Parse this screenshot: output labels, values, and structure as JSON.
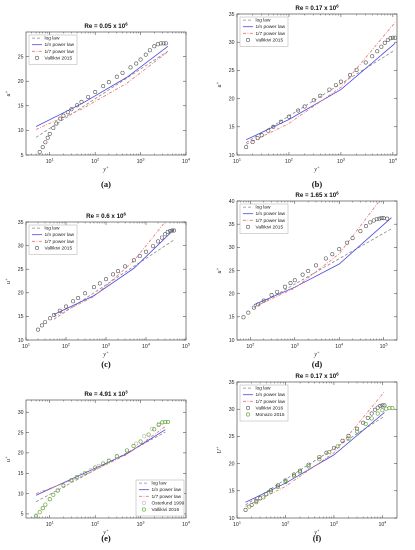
{
  "colors": {
    "log": "#8a8a8a",
    "power_n": "#4a4adf",
    "power_7": "#ee6f6f",
    "vallikivi": "#555555",
    "osterlund": "#b8b8b8",
    "green": "#5aa02c"
  },
  "legend_labels": {
    "log": "log law",
    "power_n": "1/n power law",
    "power_7": "1/7 power law"
  },
  "chart_data": [
    {
      "id": "a",
      "panel_label": "(a)",
      "type": "line",
      "title": "Re = 0.05 x 10",
      "title_exp": "6",
      "xlabel": "y",
      "xlabel_sup": "+",
      "ylabel": "u",
      "ylabel_sup": "+",
      "xscale": "log",
      "xlim": [
        3,
        10000
      ],
      "ylim": [
        5,
        30
      ],
      "xticks": [
        10,
        100,
        1000,
        10000
      ],
      "xtick_labels": [
        "10",
        "10",
        "10",
        "10"
      ],
      "xtick_exps": [
        "1",
        "2",
        "3",
        "4"
      ],
      "yticks": [
        5,
        10,
        15,
        20,
        25
      ],
      "ytick_labels": [
        "5",
        "10",
        "15",
        "20",
        "25"
      ],
      "legend_position": "top-left",
      "series": [
        {
          "name": "log law",
          "style": "dashed",
          "color_key": "log",
          "x": [
            5,
            4000
          ],
          "y": [
            8.6,
            26.1
          ]
        },
        {
          "name": "1/n power law",
          "style": "solid",
          "color_key": "power_n",
          "x": [
            5,
            50,
            500,
            4000
          ],
          "y": [
            10.8,
            15.4,
            20.8,
            27.1
          ]
        },
        {
          "name": "1/7 power law",
          "style": "dashdot",
          "color_key": "power_7",
          "x": [
            5,
            50,
            500,
            4000
          ],
          "y": [
            10.2,
            14.3,
            19.6,
            26.0
          ]
        },
        {
          "name": "Vallikivi 2015",
          "style": "marker",
          "color_key": "vallikivi",
          "x": [
            5,
            6,
            7,
            8,
            9,
            10,
            12,
            14,
            17,
            20,
            25,
            30,
            40,
            50,
            70,
            100,
            150,
            200,
            300,
            400,
            600,
            800,
            1000,
            1300,
            1600,
            2000,
            2400,
            2800,
            3200,
            3600
          ],
          "y": [
            4.6,
            5.6,
            6.6,
            7.6,
            8.5,
            9.3,
            10.5,
            11.4,
            12.4,
            13.0,
            13.7,
            14.3,
            15.1,
            15.8,
            16.8,
            17.8,
            19.0,
            19.8,
            20.9,
            21.7,
            22.8,
            23.6,
            24.4,
            25.4,
            26.3,
            27.1,
            27.5,
            27.7,
            27.7,
            27.7
          ]
        }
      ]
    },
    {
      "id": "b",
      "panel_label": "(b)",
      "type": "line",
      "title": "Re = 0.17 x 10",
      "title_exp": "6",
      "xlabel": "y",
      "xlabel_sup": "+",
      "ylabel": "u",
      "ylabel_sup": "+",
      "xscale": "log",
      "xlim": [
        10,
        12000
      ],
      "ylim": [
        10,
        35
      ],
      "xticks": [
        10,
        100,
        1000,
        10000
      ],
      "xtick_labels": [
        "10",
        "10",
        "10",
        "10"
      ],
      "xtick_exps": [
        "1",
        "2",
        "3",
        "4"
      ],
      "yticks": [
        10,
        15,
        20,
        25,
        30,
        35
      ],
      "ytick_labels": [
        "10",
        "15",
        "20",
        "25",
        "30",
        "35"
      ],
      "legend_position": "top-left",
      "series": [
        {
          "name": "log law",
          "style": "dashed",
          "color_key": "log",
          "x": [
            15,
            11000
          ],
          "y": [
            12.2,
            28.6
          ]
        },
        {
          "name": "1/n power law",
          "style": "solid",
          "color_key": "power_n",
          "x": [
            15,
            100,
            1000,
            11000
          ],
          "y": [
            12.7,
            16.3,
            21.6,
            29.8
          ]
        },
        {
          "name": "1/7 power law",
          "style": "dashdot",
          "color_key": "power_7",
          "x": [
            15,
            100,
            1000,
            11000
          ],
          "y": [
            11.9,
            15.6,
            22.0,
            33.5
          ]
        },
        {
          "name": "Vallikivi 2015",
          "style": "marker",
          "color_key": "vallikivi",
          "x": [
            15,
            20,
            25,
            30,
            40,
            50,
            70,
            100,
            150,
            200,
            300,
            400,
            600,
            800,
            1000,
            1500,
            2000,
            3000,
            4000,
            5000,
            6000,
            7000,
            8000,
            9000,
            10000,
            11000
          ],
          "y": [
            11.4,
            12.3,
            13.0,
            13.5,
            14.3,
            15.0,
            15.9,
            16.8,
            17.9,
            18.6,
            19.7,
            20.5,
            21.6,
            22.4,
            23.0,
            24.2,
            25.1,
            26.4,
            27.5,
            28.4,
            29.2,
            29.9,
            30.4,
            30.7,
            30.8,
            30.8
          ]
        }
      ]
    },
    {
      "id": "c",
      "panel_label": "(c)",
      "type": "line",
      "title": "Re = 0.6 x 10",
      "title_exp": "6",
      "xlabel": "y",
      "xlabel_sup": "+",
      "ylabel": "u",
      "ylabel_sup": "+",
      "xscale": "log",
      "xlim": [
        10,
        100000
      ],
      "ylim": [
        10,
        35
      ],
      "xticks": [
        10,
        100,
        1000,
        10000,
        100000
      ],
      "xtick_labels": [
        "10",
        "10",
        "10",
        "10",
        "10"
      ],
      "xtick_exps": [
        "1",
        "2",
        "3",
        "4",
        "5"
      ],
      "yticks": [
        10,
        15,
        20,
        25,
        30,
        35
      ],
      "ytick_labels": [
        "10",
        "15",
        "20",
        "25",
        "30",
        "35"
      ],
      "legend_position": "top-left",
      "series": [
        {
          "name": "log law",
          "style": "dashed",
          "color_key": "log",
          "x": [
            50,
            50000
          ],
          "y": [
            14.4,
            31.2
          ]
        },
        {
          "name": "1/n power law",
          "style": "solid",
          "color_key": "power_n",
          "x": [
            50,
            500,
            5000,
            50000
          ],
          "y": [
            15.4,
            19.4,
            25.2,
            33.4
          ]
        },
        {
          "name": "1/7 power law",
          "style": "dashdot",
          "color_key": "power_7",
          "x": [
            50,
            500,
            5000,
            30000
          ],
          "y": [
            15.0,
            19.2,
            26.8,
            35.0
          ]
        },
        {
          "name": "Vallikivi 2015",
          "style": "marker",
          "color_key": "vallikivi",
          "x": [
            20,
            25,
            30,
            40,
            50,
            70,
            100,
            150,
            200,
            300,
            500,
            700,
            1000,
            1500,
            2000,
            3000,
            5000,
            7000,
            10000,
            15000,
            20000,
            25000,
            30000,
            35000,
            40000,
            45000,
            50000
          ],
          "y": [
            12.2,
            13.1,
            13.8,
            14.6,
            15.3,
            16.2,
            17.1,
            18.2,
            18.9,
            19.9,
            21.2,
            22.0,
            22.9,
            23.9,
            24.6,
            25.6,
            26.9,
            27.8,
            28.7,
            29.9,
            30.9,
            31.7,
            32.4,
            32.9,
            33.1,
            33.2,
            33.2
          ]
        }
      ]
    },
    {
      "id": "d",
      "panel_label": "(d)",
      "type": "line",
      "title": "Re = 1.65 x 10",
      "title_exp": "6",
      "xlabel": "y",
      "xlabel_sup": "+",
      "ylabel": "u",
      "ylabel_sup": "+",
      "xscale": "log",
      "xlim": [
        50,
        200000
      ],
      "ylim": [
        10,
        40
      ],
      "xticks": [
        100,
        1000,
        10000,
        100000
      ],
      "xtick_labels": [
        "10",
        "10",
        "10",
        "10"
      ],
      "xtick_exps": [
        "2",
        "3",
        "4",
        "5"
      ],
      "yticks": [
        10,
        15,
        20,
        25,
        30,
        35,
        40
      ],
      "ytick_labels": [
        "10",
        "15",
        "20",
        "25",
        "30",
        "35",
        "40"
      ],
      "legend_position": "top-left",
      "series": [
        {
          "name": "log law",
          "style": "dashed",
          "color_key": "log",
          "x": [
            120,
            150000
          ],
          "y": [
            17.0,
            34.0
          ]
        },
        {
          "name": "1/n power law",
          "style": "solid",
          "color_key": "power_n",
          "x": [
            120,
            1000,
            10000,
            150000
          ],
          "y": [
            17.6,
            21.4,
            26.4,
            36.4
          ]
        },
        {
          "name": "1/7 power law",
          "style": "dashdot",
          "color_key": "power_7",
          "x": [
            120,
            1000,
            10000,
            80000
          ],
          "y": [
            17.1,
            21.2,
            28.6,
            40.0
          ]
        },
        {
          "name": "Vallikivi 2015",
          "style": "marker",
          "color_key": "vallikivi",
          "x": [
            70,
            90,
            120,
            150,
            200,
            300,
            400,
            600,
            800,
            1000,
            1500,
            2000,
            3000,
            5000,
            7000,
            10000,
            15000,
            20000,
            30000,
            40000,
            50000,
            60000,
            70000,
            80000,
            90000,
            100000,
            120000
          ],
          "y": [
            14.9,
            15.9,
            17.0,
            17.7,
            18.5,
            19.7,
            20.4,
            21.5,
            22.3,
            22.9,
            24.1,
            24.9,
            26.1,
            27.6,
            28.5,
            29.6,
            31.0,
            32.0,
            33.5,
            34.6,
            35.4,
            35.8,
            36.1,
            36.2,
            36.3,
            36.3,
            36.2
          ]
        }
      ]
    },
    {
      "id": "e",
      "panel_label": "(e)",
      "type": "line",
      "title": "Re = 4.91 x 10",
      "title_exp": "3",
      "xlabel": "y",
      "xlabel_sup": "+",
      "ylabel": "u",
      "ylabel_sup": "+",
      "xscale": "log",
      "xlim": [
        3,
        10000
      ],
      "ylim": [
        4,
        33
      ],
      "xticks": [
        10,
        100,
        1000,
        10000
      ],
      "xtick_labels": [
        "10",
        "10",
        "10",
        "10"
      ],
      "xtick_exps": [
        "1",
        "2",
        "3",
        "4"
      ],
      "yticks": [
        5,
        10,
        15,
        20,
        25,
        30
      ],
      "ytick_labels": [
        "5",
        "10",
        "15",
        "20",
        "25",
        "30"
      ],
      "legend_position": "bottom-right",
      "legend_labels": [
        "log law",
        "1/n power law",
        "1/7 power law",
        "Osterlund 1999",
        "Vallikivi 2016"
      ],
      "series": [
        {
          "name": "log law",
          "style": "dashed",
          "color_key": "log",
          "x": [
            5,
            3500
          ],
          "y": [
            8.0,
            25.1
          ]
        },
        {
          "name": "1/n power law",
          "style": "solid",
          "color_key": "power_n",
          "x": [
            5,
            50,
            500,
            3500
          ],
          "y": [
            9.6,
            14.7,
            19.8,
            25.7
          ]
        },
        {
          "name": "1/7 power law",
          "style": "dashdot",
          "color_key": "power_7",
          "x": [
            5,
            50,
            500,
            3500
          ],
          "y": [
            10.0,
            14.2,
            19.6,
            26.5
          ]
        },
        {
          "name": "Osterlund 1999",
          "style": "marker",
          "color_key": "osterlund",
          "x": [
            5,
            7,
            10,
            15,
            20,
            30,
            50,
            80,
            120,
            200,
            300,
            500,
            800,
            1200,
            1800,
            2500,
            3000
          ],
          "y": [
            4.6,
            6.4,
            8.6,
            10.7,
            11.9,
            13.2,
            14.6,
            15.8,
            16.8,
            18.0,
            19.1,
            20.6,
            22.3,
            24.1,
            25.9,
            27.1,
            27.5
          ]
        },
        {
          "name": "Vallikivi 2016",
          "style": "marker",
          "color_key": "green",
          "x": [
            5,
            6,
            7,
            8,
            10,
            12,
            15,
            20,
            30,
            40,
            60,
            100,
            150,
            200,
            300,
            500,
            700,
            1000,
            1500,
            2000,
            2500,
            3000,
            3500,
            4000
          ],
          "y": [
            4.4,
            5.4,
            6.4,
            7.3,
            8.6,
            9.7,
            10.8,
            12.0,
            13.3,
            14.1,
            15.1,
            16.4,
            17.4,
            18.1,
            19.2,
            20.6,
            21.7,
            22.8,
            24.5,
            25.8,
            26.9,
            27.5,
            27.6,
            27.6
          ]
        }
      ]
    },
    {
      "id": "f",
      "panel_label": "(f)",
      "type": "line",
      "title": "Re = 0.17 x 10",
      "title_exp": "6",
      "xlabel": "y",
      "xlabel_sup": "+",
      "ylabel": "U",
      "ylabel_sup": "+",
      "xscale": "log",
      "xlim": [
        10,
        20000
      ],
      "ylim": [
        10,
        35
      ],
      "xticks": [
        10,
        100,
        1000,
        10000
      ],
      "xtick_labels": [
        "10",
        "10",
        "10",
        "10"
      ],
      "xtick_exps": [
        "1",
        "2",
        "3",
        "4"
      ],
      "yticks": [
        10,
        15,
        20,
        25,
        30,
        35
      ],
      "ytick_labels": [
        "10",
        "15",
        "20",
        "25",
        "30",
        "35"
      ],
      "legend_position": "top-left",
      "legend_labels": [
        "log law",
        "1/n power law",
        "1/7 power law",
        "Vallikivi 2016",
        "Monazo 2015"
      ],
      "series": [
        {
          "name": "log law",
          "style": "dashed",
          "color_key": "log",
          "x": [
            15,
            11000
          ],
          "y": [
            12.4,
            28.7
          ]
        },
        {
          "name": "1/n power law",
          "style": "solid",
          "color_key": "power_n",
          "x": [
            15,
            100,
            1000,
            11000
          ],
          "y": [
            12.9,
            16.4,
            21.6,
            29.4
          ]
        },
        {
          "name": "1/7 power law",
          "style": "dashdot",
          "color_key": "power_7",
          "x": [
            15,
            100,
            1000,
            11000
          ],
          "y": [
            12.1,
            15.8,
            22.0,
            33.2
          ]
        },
        {
          "name": "Vallikivi 2016",
          "style": "marker",
          "color_key": "vallikivi",
          "x": [
            15,
            20,
            25,
            30,
            40,
            50,
            70,
            100,
            150,
            200,
            300,
            500,
            700,
            1000,
            1500,
            2000,
            3000,
            4000,
            5000,
            6000,
            7000,
            8000,
            9000,
            10000,
            11000
          ],
          "y": [
            11.5,
            12.4,
            13.1,
            13.6,
            14.4,
            15.1,
            16.0,
            16.9,
            18.0,
            18.7,
            19.8,
            21.2,
            22.0,
            22.9,
            24.2,
            25.1,
            26.4,
            27.5,
            28.4,
            29.2,
            29.9,
            30.3,
            30.6,
            30.7,
            30.7
          ]
        },
        {
          "name": "Monazo 2015",
          "style": "marker",
          "color_key": "green",
          "x": [
            18,
            25,
            35,
            50,
            70,
            100,
            150,
            200,
            300,
            500,
            800,
            1200,
            2000,
            3000,
            4500,
            6000,
            8000,
            10000,
            12000,
            14000,
            16000
          ],
          "y": [
            12.1,
            12.9,
            13.8,
            14.8,
            15.7,
            16.6,
            17.7,
            18.4,
            19.5,
            20.8,
            22.1,
            23.2,
            24.6,
            25.9,
            27.3,
            28.3,
            29.2,
            29.8,
            30.1,
            30.2,
            30.2
          ]
        }
      ]
    }
  ]
}
